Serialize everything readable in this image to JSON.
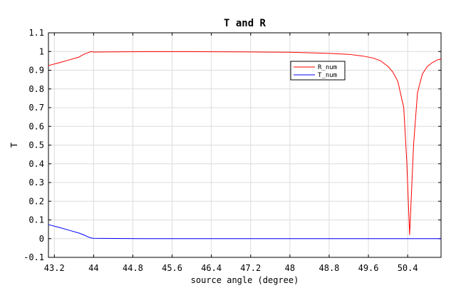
{
  "chart_data": {
    "type": "line",
    "title": "T and R",
    "xlabel": "source angle (degree)",
    "ylabel": "T",
    "xlim": [
      43.08,
      51.08
    ],
    "ylim": [
      -0.1,
      1.1
    ],
    "xticks": [
      "43.2",
      "44",
      "44.8",
      "45.6",
      "46.4",
      "47.2",
      "48",
      "48.8",
      "49.6",
      "50.4"
    ],
    "xtick_values": [
      43.2,
      44.0,
      44.8,
      45.6,
      46.4,
      47.2,
      48.0,
      48.8,
      49.6,
      50.4
    ],
    "yticks": [
      "-0.1",
      "0",
      "0.1",
      "0.2",
      "0.3",
      "0.4",
      "0.5",
      "0.6",
      "0.7",
      "0.8",
      "0.9",
      "1",
      "1.1"
    ],
    "ytick_values": [
      -0.1,
      0,
      0.1,
      0.2,
      0.3,
      0.4,
      0.5,
      0.6,
      0.7,
      0.8,
      0.9,
      1.0,
      1.1
    ],
    "grid": true,
    "legend_position": "top-right",
    "series": [
      {
        "name": "R_num",
        "color": "#ff0000",
        "x": [
          43.08,
          43.3,
          43.5,
          43.7,
          43.8,
          43.9,
          43.96,
          44.0,
          44.4,
          45.0,
          46.0,
          47.0,
          48.0,
          48.8,
          49.2,
          49.5,
          49.7,
          49.85,
          50.0,
          50.1,
          50.2,
          50.26,
          50.32,
          50.38,
          50.44,
          50.52,
          50.6,
          50.7,
          50.8,
          50.9,
          51.0,
          51.08
        ],
        "y": [
          0.925,
          0.94,
          0.955,
          0.97,
          0.985,
          0.995,
          1.0,
          0.997,
          0.998,
          0.999,
          0.999,
          0.998,
          0.996,
          0.99,
          0.985,
          0.975,
          0.965,
          0.95,
          0.92,
          0.89,
          0.84,
          0.77,
          0.7,
          0.42,
          0.02,
          0.5,
          0.78,
          0.88,
          0.92,
          0.94,
          0.955,
          0.96
        ]
      },
      {
        "name": "T_num",
        "color": "#0000ff",
        "x": [
          43.08,
          43.3,
          43.5,
          43.7,
          43.8,
          43.9,
          43.96,
          44.0,
          44.4,
          45.0,
          46.0,
          47.0,
          48.0,
          49.0,
          50.0,
          50.44,
          51.08
        ],
        "y": [
          0.075,
          0.06,
          0.045,
          0.03,
          0.02,
          0.008,
          0.003,
          0.002,
          0.001,
          0.0,
          0.0,
          0.0,
          0.0,
          0.0,
          0.0,
          0.0,
          0.0
        ]
      }
    ]
  }
}
